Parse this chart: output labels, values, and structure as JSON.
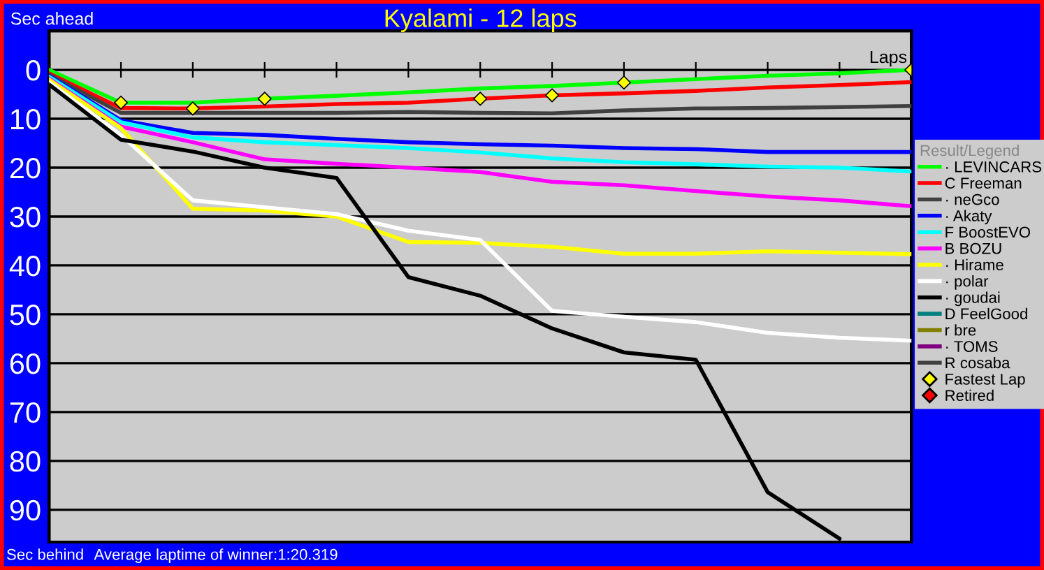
{
  "chart_data": {
    "type": "line",
    "title": "Kyalami - 12 laps",
    "xlabel": "Laps",
    "ylabel": "Sec ahead",
    "legend_title": "Result/Legend",
    "annotations": [
      "Sec behind",
      "Average laptime of winner:1:20.319"
    ],
    "categories": [
      null,
      null,
      null,
      null,
      null,
      null,
      null,
      null,
      null,
      null,
      null,
      null,
      null
    ],
    "ylim": [
      96.6,
      -8
    ],
    "yticks": [
      0,
      10,
      20,
      30,
      40,
      50,
      60,
      70,
      80,
      90
    ],
    "tick_labels": "y",
    "grid": "y",
    "legend": "right",
    "marker": "none",
    "line_style": "solid",
    "series": [
      {
        "name": "· LEVINCARS",
        "color": "#00ff00",
        "values": [
          0,
          6.7,
          6.7,
          5.9,
          5.3,
          4.6,
          3.8,
          3.3,
          2.6,
          1.9,
          1.2,
          0.7,
          0
        ]
      },
      {
        "name": "C Freeman",
        "color": "#ff0000",
        "values": [
          0.7,
          7.8,
          7.9,
          7.5,
          7.0,
          6.7,
          5.9,
          5.2,
          4.8,
          4.3,
          3.6,
          3.1,
          2.5
        ]
      },
      {
        "name": "· neGco",
        "color": "#404040",
        "values": [
          1.0,
          8.8,
          8.8,
          8.8,
          8.8,
          8.6,
          8.8,
          8.9,
          8.3,
          7.9,
          7.8,
          7.6,
          7.4
        ]
      },
      {
        "name": "· Akaty",
        "color": "#0000ff",
        "values": [
          1.2,
          10.3,
          12.9,
          13.3,
          14.1,
          14.8,
          15.2,
          15.5,
          16.0,
          16.2,
          16.8,
          16.8,
          16.8
        ]
      },
      {
        "name": "F BoostEVO",
        "color": "#00ffff",
        "values": [
          1.4,
          10.7,
          13.8,
          14.8,
          15.4,
          16.0,
          16.9,
          18.1,
          18.9,
          19.3,
          19.8,
          20.0,
          20.8
        ]
      },
      {
        "name": "B BOZU",
        "color": "#ff00ff",
        "values": [
          1.8,
          11.6,
          14.8,
          18.3,
          19.2,
          20.0,
          20.9,
          22.9,
          23.6,
          24.8,
          25.9,
          26.7,
          27.9
        ]
      },
      {
        "name": "· Hirame",
        "color": "#ffff00",
        "values": [
          2.0,
          11.9,
          28.4,
          28.8,
          30.0,
          35.2,
          35.4,
          36.2,
          37.6,
          37.6,
          37.1,
          37.4,
          37.7
        ]
      },
      {
        "name": "· polar",
        "color": "#ffffff",
        "values": [
          2.5,
          13.3,
          26.7,
          28.1,
          29.5,
          32.9,
          34.8,
          49.3,
          50.5,
          51.6,
          53.8,
          54.8,
          55.4
        ]
      },
      {
        "name": "· goudai",
        "color": "#000000",
        "values": [
          3.0,
          14.3,
          16.7,
          20.0,
          22.1,
          42.4,
          46.2,
          52.9,
          57.8,
          59.3,
          86.4,
          95.9,
          null
        ]
      },
      {
        "name": "D FeelGood",
        "color": "#008080",
        "values": [
          null,
          null,
          null,
          null,
          null,
          null,
          null,
          null,
          null,
          null,
          null,
          null,
          null
        ]
      },
      {
        "name": "r bre",
        "color": "#808000",
        "values": [
          null,
          null,
          null,
          null,
          null,
          null,
          null,
          null,
          null,
          null,
          null,
          null,
          null
        ]
      },
      {
        "name": "· TOMS",
        "color": "#800080",
        "values": [
          null,
          null,
          null,
          null,
          null,
          null,
          null,
          null,
          null,
          null,
          null,
          null,
          null
        ]
      },
      {
        "name": "R cosaba",
        "color": "#404040",
        "values": [
          null,
          null,
          null,
          null,
          null,
          null,
          null,
          null,
          null,
          null,
          null,
          null,
          null
        ]
      },
      {
        "name": "Fastest Lap",
        "type": "scatter",
        "marker": "diamond",
        "color": "#ffff00",
        "values": [
          null,
          6.7,
          7.9,
          5.9,
          null,
          null,
          5.9,
          5.2,
          2.6,
          null,
          null,
          null,
          0
        ]
      },
      {
        "name": "Retired",
        "type": "scatter",
        "marker": "diamond",
        "color": "#ff0000",
        "values": [
          null,
          null,
          null,
          null,
          null,
          null,
          null,
          null,
          null,
          null,
          null,
          null,
          null
        ]
      }
    ]
  }
}
